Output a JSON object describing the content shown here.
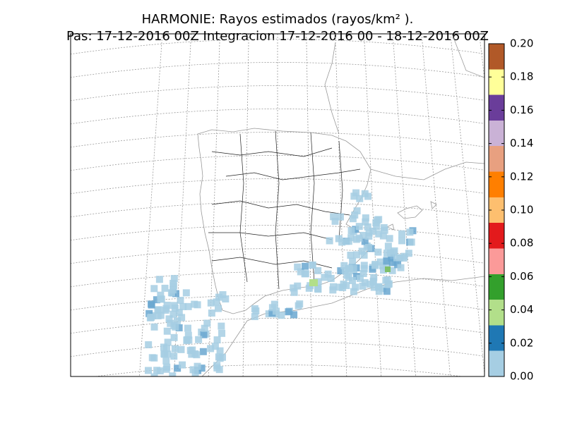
{
  "title": "HARMONIE: Rayos estimados  (rayos/km² ).",
  "subtitle": "Pas: 17-12-2016 00Z Integracion 17-12-2016 00 - 18-12-2016 00Z",
  "colorbar": {
    "range": [
      0,
      0.2
    ],
    "ticks": [
      {
        "value": 0,
        "label": "0.00"
      },
      {
        "value": 0.02,
        "label": "0.02"
      },
      {
        "value": 0.04,
        "label": "0.04"
      },
      {
        "value": 0.06,
        "label": "0.06"
      },
      {
        "value": 0.08,
        "label": "0.08"
      },
      {
        "value": 0.1,
        "label": "0.10"
      },
      {
        "value": 0.12,
        "label": "0.12"
      },
      {
        "value": 0.14,
        "label": "0.14"
      },
      {
        "value": 0.16,
        "label": "0.16"
      },
      {
        "value": 0.18,
        "label": "0.18"
      },
      {
        "value": 0.2,
        "label": "0.20"
      }
    ],
    "colors": [
      "#a6cee3",
      "#1f78b4",
      "#b2df8a",
      "#33a02c",
      "#fb9a99",
      "#e31a1c",
      "#fdbf6f",
      "#ff7f00",
      "#e8a080",
      "#cab2d6",
      "#6a3d9a",
      "#ffff99",
      "#b15928"
    ]
  }
}
